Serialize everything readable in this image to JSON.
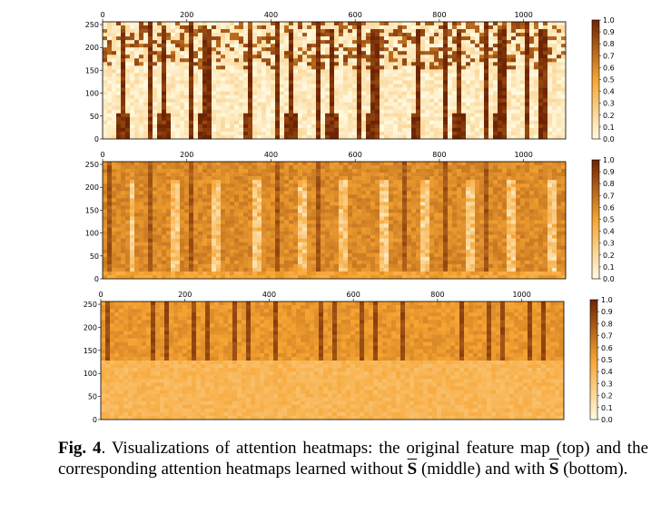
{
  "colors": {
    "low": "#fffbe2",
    "mid": "#f6a432",
    "high": "#6e2403"
  },
  "chart_data": [
    {
      "type": "heatmap",
      "title": "",
      "xlabel": "",
      "ylabel": "",
      "xlim": [
        0,
        1100
      ],
      "ylim": [
        0,
        256
      ],
      "xticks": [
        "0",
        "200",
        "400",
        "600",
        "800",
        "1000"
      ],
      "yticks": [
        "0",
        "50",
        "100",
        "150",
        "200",
        "250"
      ],
      "colorbar_ticks": [
        "0.0",
        "0.1",
        "0.2",
        "0.3",
        "0.4",
        "0.5",
        "0.6",
        "0.7",
        "0.8",
        "0.9",
        "1.0"
      ],
      "colorbar_range": [
        0,
        1
      ],
      "description_values": {
        "base_level": 0.1,
        "stripe_level": 0.95,
        "stripe_period": 100
      }
    },
    {
      "type": "heatmap",
      "title": "",
      "xlabel": "",
      "ylabel": "",
      "xlim": [
        0,
        1100
      ],
      "ylim": [
        0,
        256
      ],
      "xticks": [
        "0",
        "200",
        "400",
        "600",
        "800",
        "1000"
      ],
      "yticks": [
        "0",
        "50",
        "100",
        "150",
        "200",
        "250"
      ],
      "colorbar_ticks": [
        "0.0",
        "0.1",
        "0.2",
        "0.3",
        "0.4",
        "0.5",
        "0.6",
        "0.7",
        "0.8",
        "0.9",
        "1.0"
      ],
      "colorbar_range": [
        0,
        1
      ],
      "description_values": {
        "base_level": 0.6,
        "stripe_level": 0.8,
        "light_level": 0.15,
        "stripe_period": 100
      }
    },
    {
      "type": "heatmap",
      "title": "",
      "xlabel": "",
      "ylabel": "",
      "xlim": [
        0,
        1100
      ],
      "ylim": [
        0,
        256
      ],
      "xticks": [
        "0",
        "200",
        "400",
        "600",
        "800",
        "1000"
      ],
      "yticks": [
        "0",
        "50",
        "100",
        "150",
        "200",
        "250"
      ],
      "colorbar_ticks": [
        "0.0",
        "0.1",
        "0.2",
        "0.3",
        "0.4",
        "0.5",
        "0.6",
        "0.7",
        "0.8",
        "0.9",
        "1.0"
      ],
      "colorbar_range": [
        0,
        1
      ],
      "description_values": {
        "base_level": 0.4,
        "band_level": 0.85,
        "band_y_range": [
          130,
          256
        ]
      }
    }
  ],
  "caption": {
    "label": "Fig. 4",
    "line1": ".  Visualizations of attention heatmaps: the original feature",
    "line2": "map (top) and the corresponding attention heatmaps learned without",
    "s_symbol": "S",
    "middle": " (middle) and with ",
    "end": " (bottom)."
  }
}
